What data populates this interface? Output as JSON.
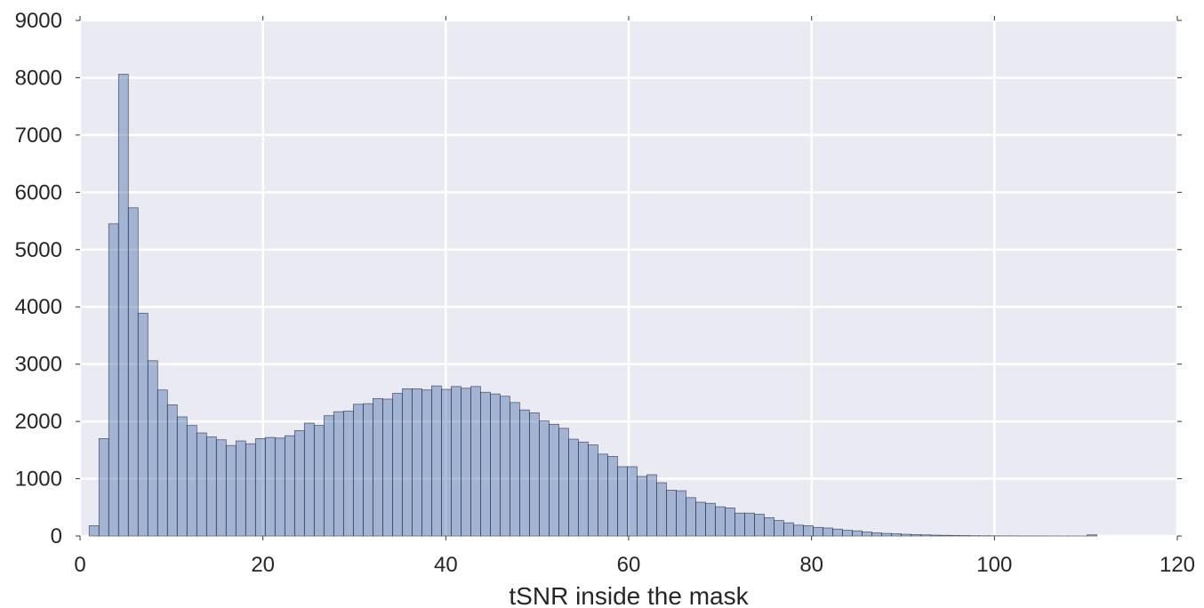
{
  "chart_data": {
    "type": "bar",
    "title": "",
    "xlabel": "tSNR inside the mask",
    "ylabel": "",
    "xlim": [
      0,
      120
    ],
    "ylim": [
      0,
      9000
    ],
    "grid": true,
    "style": {
      "background": "#eaeaf2",
      "grid_color": "#ffffff",
      "bar_fill": "#4c72b0",
      "bar_opacity": 0.45,
      "bar_edge": "#30384a"
    },
    "x_ticks": [
      0,
      20,
      40,
      60,
      80,
      100,
      120
    ],
    "x_tick_labels": [
      "0",
      "20",
      "40",
      "60",
      "80",
      "100",
      "120"
    ],
    "y_ticks": [
      0,
      1000,
      2000,
      3000,
      4000,
      5000,
      6000,
      7000,
      8000,
      9000
    ],
    "y_tick_labels": [
      "0",
      "1000",
      "2000",
      "3000",
      "4000",
      "5000",
      "6000",
      "7000",
      "8000",
      "9000"
    ],
    "bin_start": 1.0,
    "bin_width": 1.07,
    "values": [
      180,
      1700,
      5450,
      8060,
      5730,
      3890,
      3060,
      2550,
      2290,
      2080,
      1930,
      1800,
      1730,
      1680,
      1580,
      1660,
      1610,
      1700,
      1720,
      1710,
      1750,
      1840,
      1970,
      1930,
      2100,
      2170,
      2180,
      2300,
      2310,
      2400,
      2390,
      2490,
      2570,
      2570,
      2550,
      2620,
      2560,
      2610,
      2580,
      2610,
      2510,
      2480,
      2440,
      2330,
      2200,
      2150,
      2010,
      1950,
      1880,
      1690,
      1640,
      1590,
      1430,
      1390,
      1210,
      1210,
      1040,
      1070,
      930,
      800,
      790,
      670,
      590,
      570,
      510,
      490,
      400,
      400,
      380,
      320,
      270,
      230,
      190,
      180,
      150,
      140,
      120,
      100,
      90,
      70,
      55,
      45,
      40,
      30,
      25,
      20,
      15,
      12,
      10,
      8,
      6,
      5,
      4,
      3,
      3,
      2,
      2,
      2,
      1,
      1,
      1,
      1,
      20
    ]
  }
}
